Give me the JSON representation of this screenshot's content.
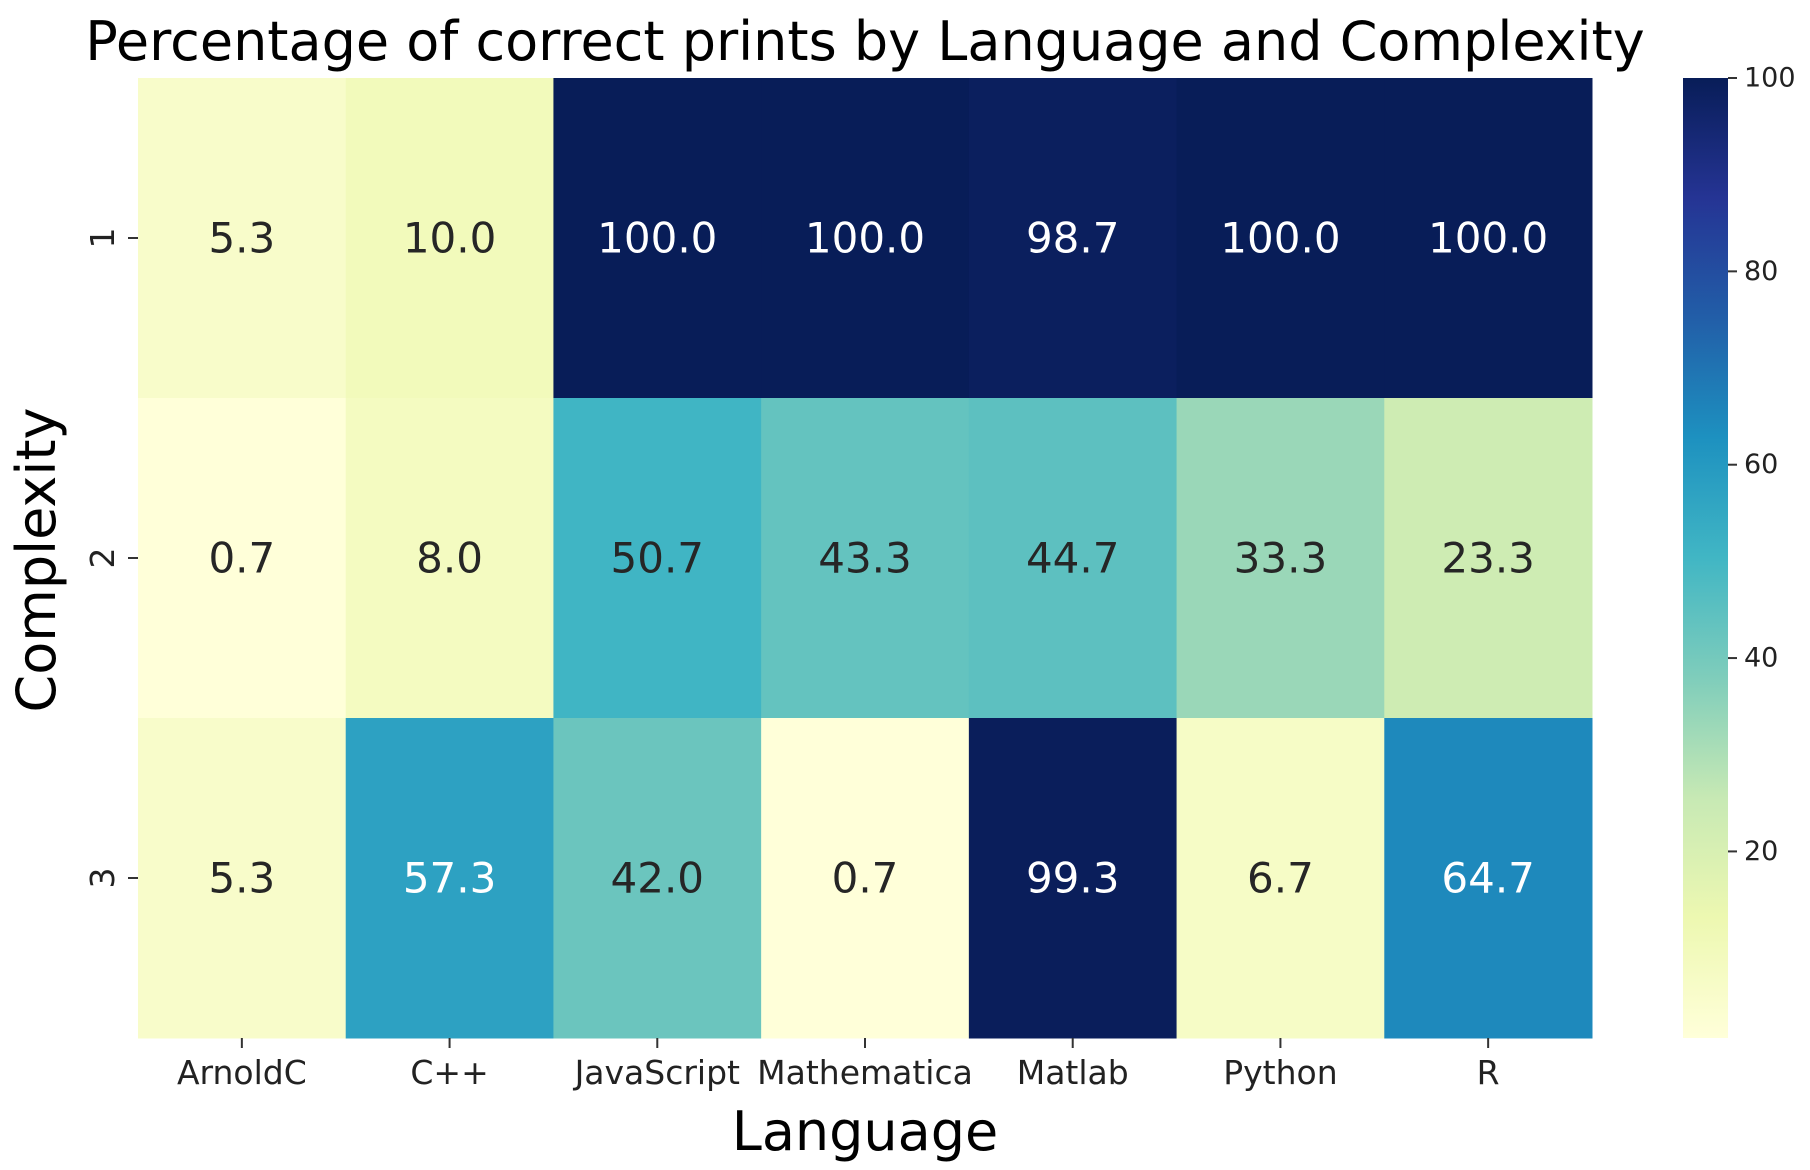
{
  "chart_data": {
    "type": "heatmap",
    "title": "Percentage of correct prints by Language and Complexity",
    "xlabel": "Language",
    "ylabel": "Complexity",
    "x_categories": [
      "ArnoldC",
      "C++",
      "JavaScript",
      "Mathematica",
      "Matlab",
      "Python",
      "R"
    ],
    "y_categories": [
      "1",
      "2",
      "3"
    ],
    "values": [
      [
        5.3,
        10.0,
        100.0,
        100.0,
        98.7,
        100.0,
        100.0
      ],
      [
        0.7,
        8.0,
        50.7,
        43.3,
        44.7,
        33.3,
        23.3
      ],
      [
        5.3,
        57.3,
        42.0,
        0.7,
        99.3,
        6.7,
        64.7
      ]
    ],
    "value_labels": [
      [
        "5.3",
        "10.0",
        "100.0",
        "100.0",
        "98.7",
        "100.0",
        "100.0"
      ],
      [
        "0.7",
        "8.0",
        "50.7",
        "43.3",
        "44.7",
        "33.3",
        "23.3"
      ],
      [
        "5.3",
        "57.3",
        "42.0",
        "0.7",
        "99.3",
        "6.7",
        "64.7"
      ]
    ],
    "colormap": "YlGnBu",
    "color_range": [
      0.7,
      100
    ],
    "colorbar_ticks": [
      "20",
      "40",
      "60",
      "80",
      "100"
    ],
    "colorbar_tick_values": [
      20,
      40,
      60,
      80,
      100
    ]
  }
}
